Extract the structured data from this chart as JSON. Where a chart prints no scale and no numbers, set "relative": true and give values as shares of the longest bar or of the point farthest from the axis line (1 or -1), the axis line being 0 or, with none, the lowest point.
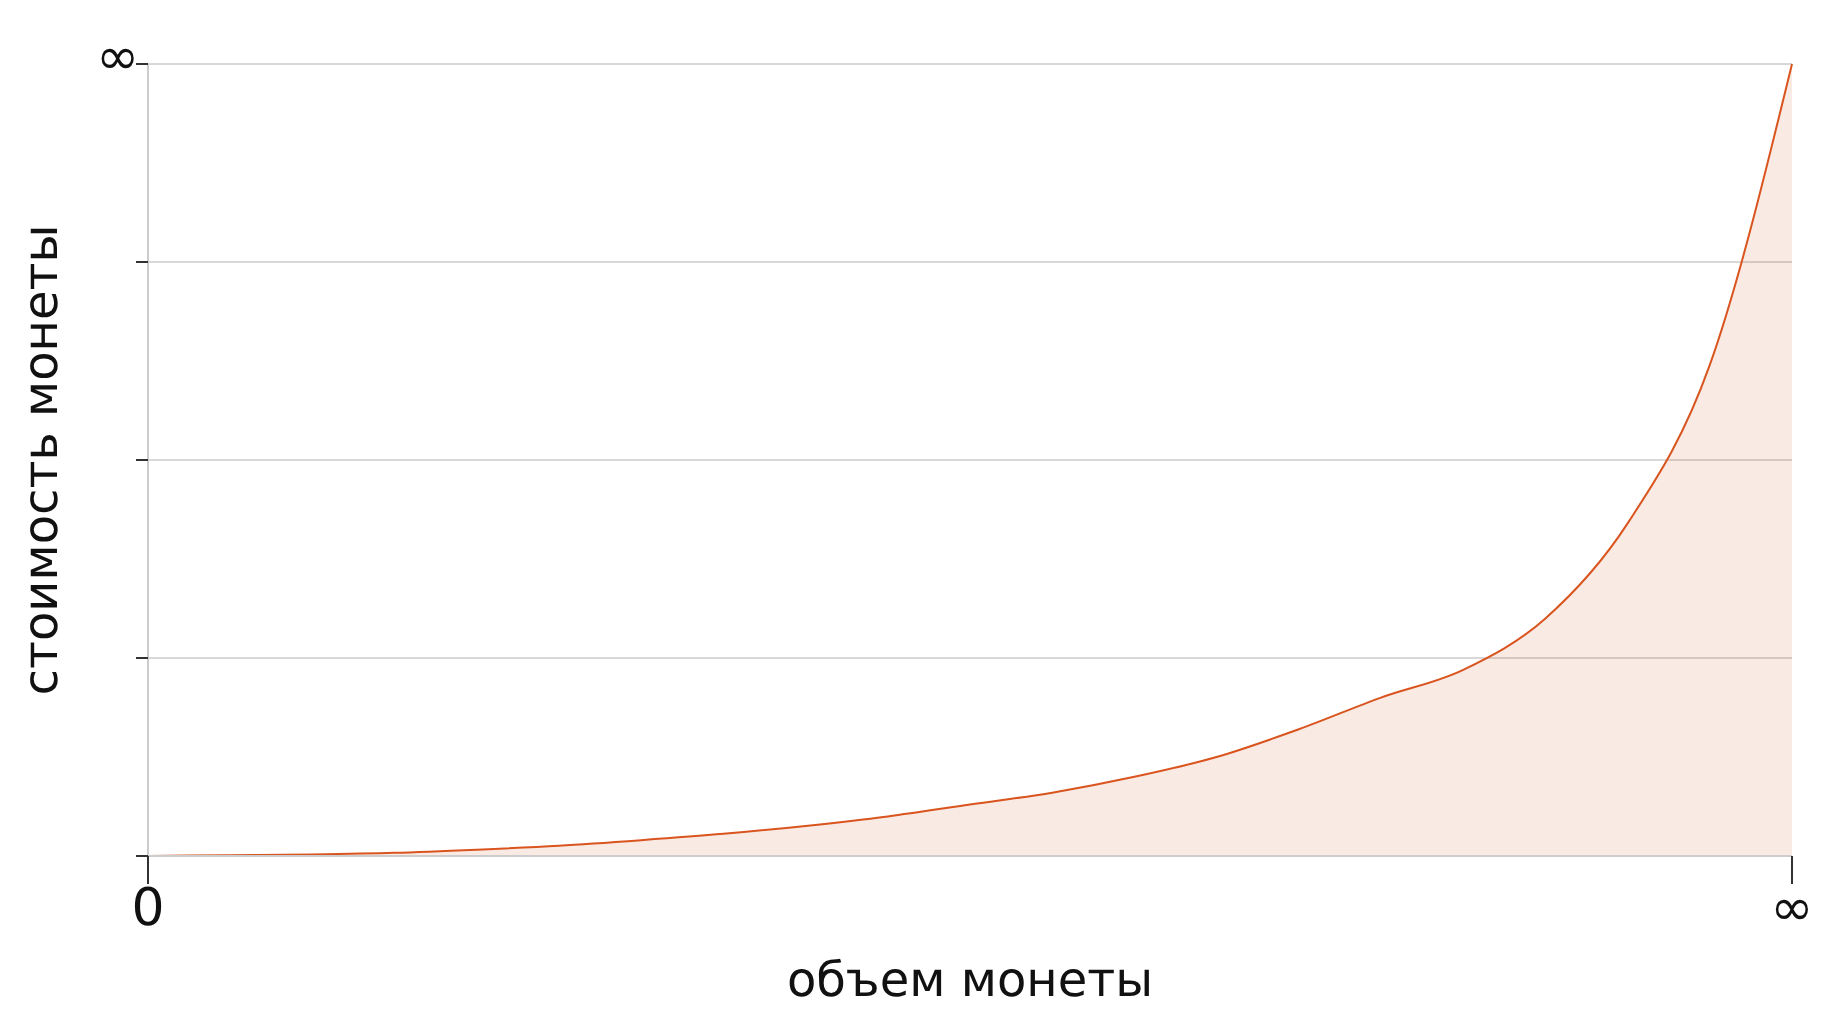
{
  "chart_data": {
    "type": "area",
    "xlabel": "объем монеты",
    "ylabel": "стоимость монеты",
    "categories": [
      "0",
      null,
      null,
      null,
      null,
      null,
      null,
      null,
      null,
      null,
      null,
      null,
      null,
      null,
      null,
      null,
      null,
      null,
      null,
      null,
      "∞"
    ],
    "series": [
      {
        "color": "#d9541e",
        "values": [
          0,
          0.001,
          0.002,
          0.004,
          0.008,
          0.013,
          0.02,
          0.028,
          0.038,
          0.05,
          0.065,
          0.08,
          0.1,
          0.125,
          0.16,
          0.2,
          0.235,
          0.3,
          0.42,
          0.62,
          1
        ]
      }
    ],
    "relative": true,
    "annotations": [
      "∞"
    ],
    "grid": "y",
    "marker": "none"
  }
}
